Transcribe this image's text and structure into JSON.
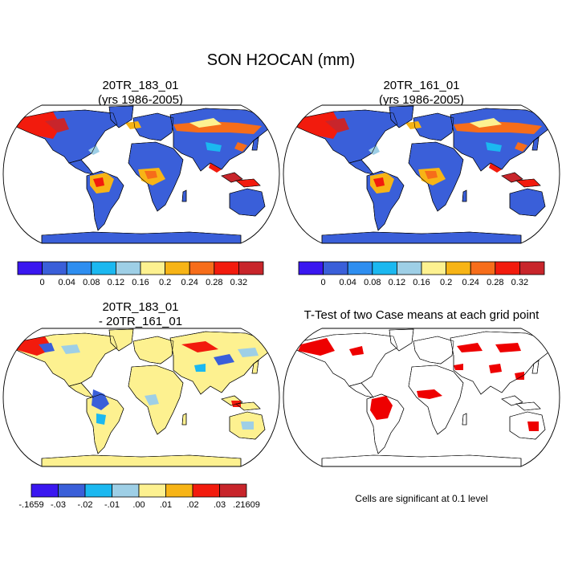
{
  "figure": {
    "title": "SON H2OCAN (mm)"
  },
  "panels": {
    "top_left": {
      "title_line1": "20TR_183_01",
      "title_line2": "(yrs 1986-2005)"
    },
    "top_right": {
      "title_line1": "20TR_161_01",
      "title_line2": "(yrs 1986-2005)"
    },
    "bottom_left": {
      "title_line1": "20TR_183_01",
      "title_line2": "- 20TR_161_01"
    },
    "bottom_right": {
      "title": "T-Test of two Case means at each grid point",
      "note": "Cells are significant at 0.1 level"
    }
  },
  "colorbars": {
    "mean": {
      "colors": [
        "#3a17f0",
        "#3a5fd9",
        "#2e8ef0",
        "#1bb8f0",
        "#9ecfe6",
        "#fdf190",
        "#f7b416",
        "#f66d1a",
        "#f21b0d",
        "#c8252b"
      ],
      "labels": [
        "0",
        "0.04",
        "0.08",
        "0.12",
        "0.16",
        "0.2",
        "0.24",
        "0.28",
        "0.32"
      ]
    },
    "diff": {
      "colors": [
        "#3a17f0",
        "#3a5fd9",
        "#1bb8f0",
        "#9ecfe6",
        "#fdf190",
        "#f7b416",
        "#f21b0d",
        "#c8252b"
      ],
      "labels": [
        "-.1659",
        "-.03",
        "-.02",
        "-.01",
        ".00",
        ".01",
        ".02",
        ".03",
        ".21609"
      ]
    }
  },
  "chart_data": [
    {
      "type": "heatmap",
      "title": "20TR_183_01 (yrs 1986-2005)",
      "variable": "SON H2OCAN (mm)",
      "contour_levels": [
        0,
        0.04,
        0.08,
        0.12,
        0.16,
        0.2,
        0.24,
        0.28,
        0.32
      ],
      "projection": "Robinson global map",
      "regions": [
        {
          "region": "Alaska / NW Canada",
          "value_range": [
            0.28,
            0.36
          ]
        },
        {
          "region": "Most land areas",
          "value_range": [
            0.0,
            0.04
          ]
        },
        {
          "region": "Amazon",
          "value_range": [
            0.16,
            0.32
          ]
        },
        {
          "region": "Central Africa",
          "value_range": [
            0.16,
            0.28
          ]
        },
        {
          "region": "Siberia / E. Asia",
          "value_range": [
            0.12,
            0.32
          ]
        },
        {
          "region": "Maritime SE Asia",
          "value_range": [
            0.28,
            0.36
          ]
        }
      ]
    },
    {
      "type": "heatmap",
      "title": "20TR_161_01 (yrs 1986-2005)",
      "variable": "SON H2OCAN (mm)",
      "contour_levels": [
        0,
        0.04,
        0.08,
        0.12,
        0.16,
        0.2,
        0.24,
        0.28,
        0.32
      ],
      "projection": "Robinson global map",
      "regions": [
        {
          "region": "Alaska / NW Canada",
          "value_range": [
            0.28,
            0.36
          ]
        },
        {
          "region": "Most land areas",
          "value_range": [
            0.0,
            0.04
          ]
        },
        {
          "region": "Amazon",
          "value_range": [
            0.16,
            0.32
          ]
        },
        {
          "region": "Central Africa",
          "value_range": [
            0.16,
            0.28
          ]
        },
        {
          "region": "Siberia / E. Asia",
          "value_range": [
            0.12,
            0.32
          ]
        },
        {
          "region": "Maritime SE Asia",
          "value_range": [
            0.28,
            0.36
          ]
        }
      ]
    },
    {
      "type": "heatmap",
      "title": "20TR_183_01 - 20TR_161_01",
      "contour_levels": [
        -0.1659,
        -0.03,
        -0.02,
        -0.01,
        0.0,
        0.01,
        0.02,
        0.03,
        0.21609
      ],
      "projection": "Robinson global map",
      "regions": [
        {
          "region": "Most land areas",
          "value_range": [
            0.0,
            0.01
          ]
        },
        {
          "region": "NW North America",
          "value_range": [
            -0.03,
            0.03
          ]
        },
        {
          "region": "Amazon",
          "value_range": [
            -0.03,
            0.01
          ]
        },
        {
          "region": "Siberia",
          "value_range": [
            -0.03,
            0.03
          ]
        }
      ]
    },
    {
      "type": "heatmap",
      "title": "T-Test of two Case means at each grid point",
      "significance_level": 0.1,
      "regions_significant": [
        "NW North America",
        "Amazon",
        "Central Africa",
        "Northern Eurasia",
        "SE Asia",
        "Australia (east)"
      ]
    }
  ]
}
